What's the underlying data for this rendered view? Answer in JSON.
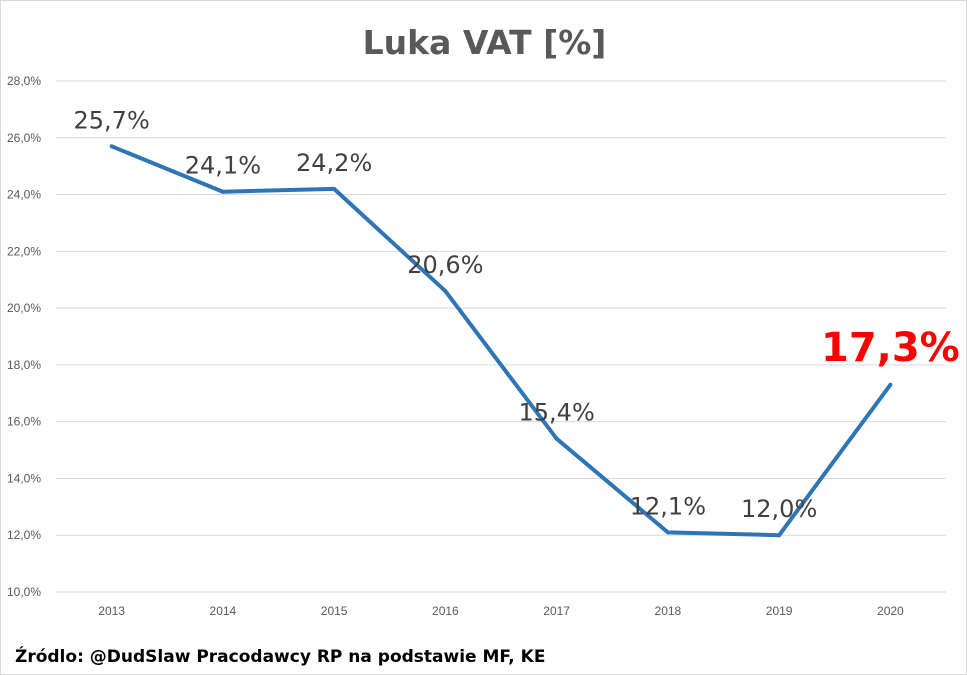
{
  "chart_data": {
    "type": "line",
    "title": "Luka VAT [%]",
    "categories": [
      "2013",
      "2014",
      "2015",
      "2016",
      "2017",
      "2018",
      "2019",
      "2020"
    ],
    "values": [
      25.7,
      24.1,
      24.2,
      20.6,
      15.4,
      12.1,
      12.0,
      17.3
    ],
    "data_labels": [
      "25,7%",
      "24,1%",
      "24,2%",
      "20,6%",
      "15,4%",
      "12,1%",
      "12,0%",
      "17,3%"
    ],
    "highlight_label_index": 7,
    "highlight_color": "#ff0000",
    "line_color": "#2e75b6",
    "ylim": [
      10,
      28
    ],
    "yticks": [
      10,
      12,
      14,
      16,
      18,
      20,
      22,
      24,
      26,
      28
    ],
    "ytick_labels": [
      "10,0%",
      "12,0%",
      "14,0%",
      "16,0%",
      "18,0%",
      "20,0%",
      "22,0%",
      "24,0%",
      "26,0%",
      "28,0%"
    ],
    "grid": true,
    "legend": "none",
    "source": "Źródlo: @DudSlaw Pracodawcy RP na podstawie MF, KE"
  }
}
